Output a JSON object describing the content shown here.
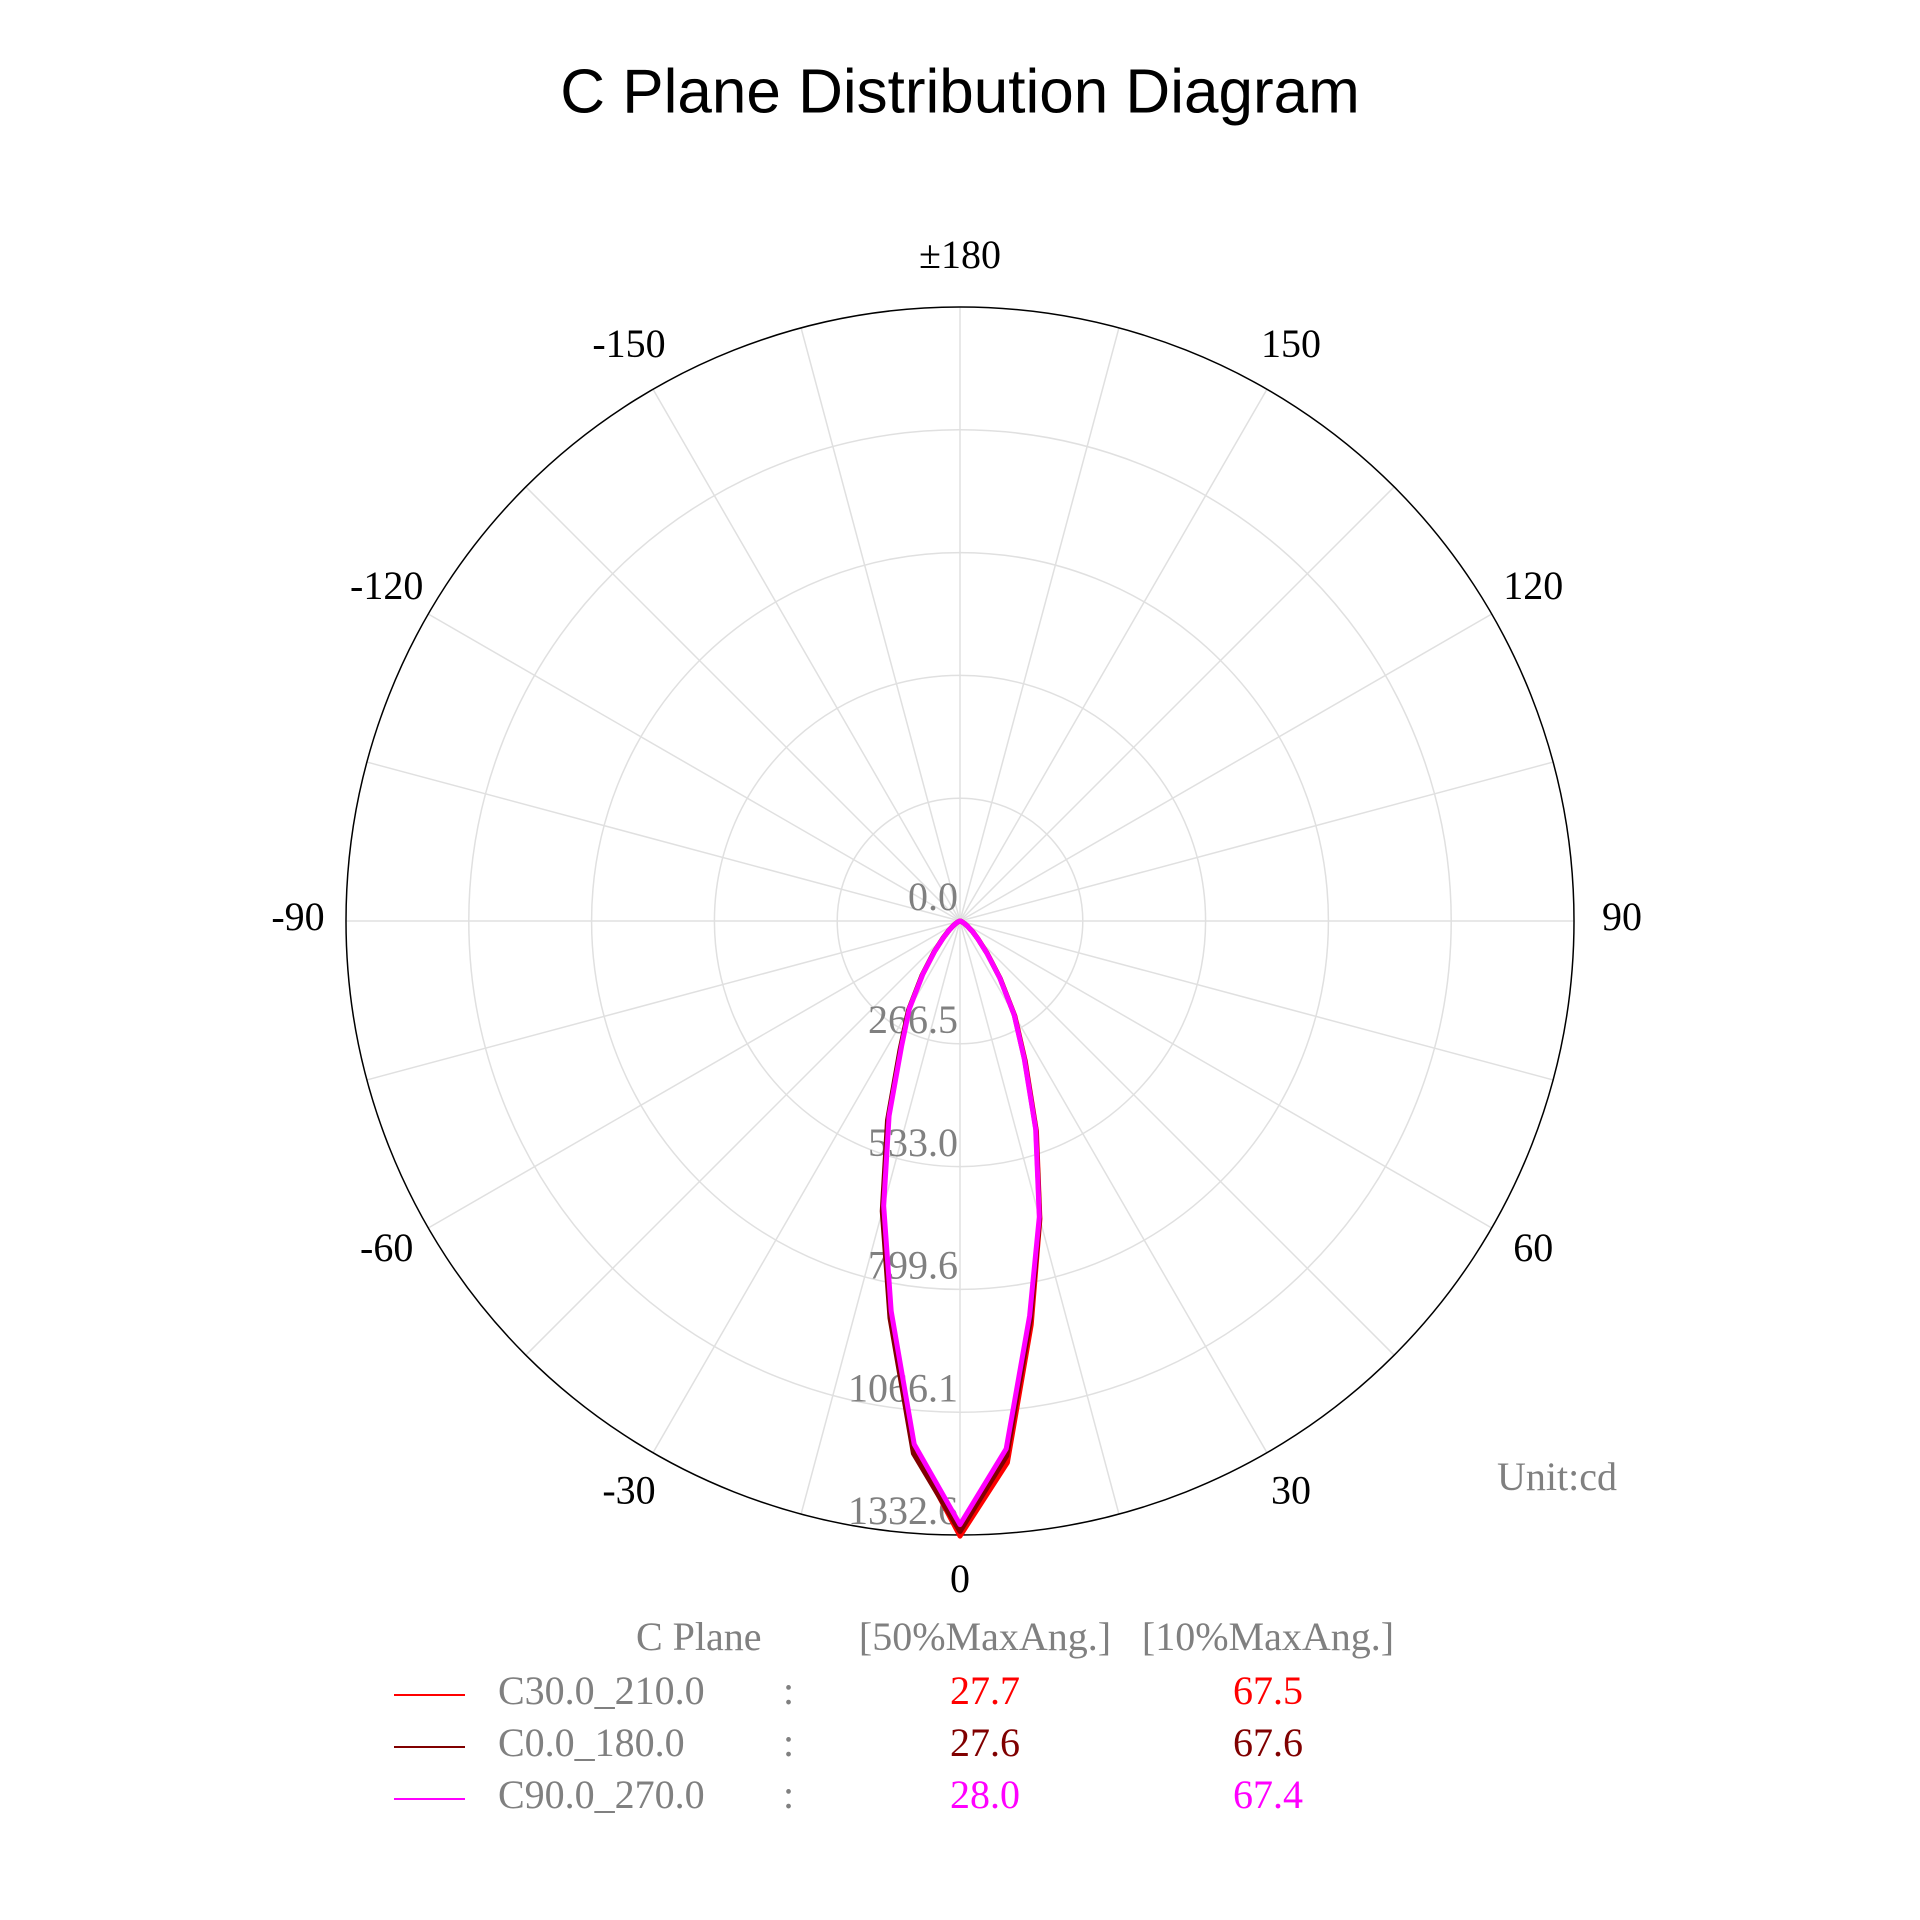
{
  "chart_data": {
    "type": "polar",
    "title": "C Plane Distribution Diagram",
    "unit_label": "Unit:cd",
    "x": [
      -90,
      -85,
      -80,
      -75,
      -70,
      -65,
      -60,
      -55,
      -50,
      -45,
      -40,
      -35,
      -30,
      -25,
      -20,
      -15,
      -10,
      -5,
      0,
      5,
      10,
      15,
      20,
      25,
      30,
      35,
      40,
      45,
      50,
      55,
      60,
      65,
      70,
      75,
      80,
      85,
      90
    ],
    "rlim": [
      0,
      1332.6
    ],
    "rticks": [
      {
        "value": 0,
        "label": "0.0"
      },
      266.5,
      {
        "value": 533,
        "label": "533.0"
      },
      799.6,
      1066.1,
      1332.6
    ],
    "angle_ticks": [
      {
        "value": 180,
        "label": "±180"
      },
      -150,
      -120,
      -90,
      -60,
      -30,
      0,
      30,
      60,
      90,
      120,
      150
    ],
    "grid": true,
    "table_headers": [
      "C Plane",
      "[50%MaxAng.]",
      "[10%MaxAng.]"
    ],
    "separator": ":",
    "series": [
      {
        "name": "C30.0_210.0",
        "color": "#ff0000",
        "values": [
          0,
          0,
          0,
          1,
          2,
          5,
          10,
          18,
          31,
          51,
          86,
          142,
          222,
          305,
          455,
          645,
          865,
          1150,
          1335,
          1180,
          890,
          670,
          485,
          335,
          238,
          152,
          92,
          56,
          36,
          21,
          12,
          6,
          3,
          1,
          0,
          0,
          0
        ],
        "stats": [
          {
            "value": 27.7,
            "label": "27.7"
          },
          {
            "value": 67.5,
            "label": "67.5"
          }
        ]
      },
      {
        "name": "C0.0_180.0",
        "color": "#800000",
        "values": [
          0,
          0,
          0,
          1,
          2,
          5,
          10,
          18,
          31,
          52,
          87,
          143,
          224,
          308,
          460,
          652,
          875,
          1160,
          1325,
          1165,
          880,
          668,
          482,
          332,
          236,
          151,
          91,
          55,
          35,
          20,
          12,
          6,
          3,
          1,
          0,
          0,
          0
        ],
        "stats": [
          {
            "value": 27.6,
            "label": "27.6"
          },
          {
            "value": 67.6,
            "label": "67.6"
          }
        ]
      },
      {
        "name": "C90.0_270.0",
        "color": "#ff00ff",
        "values": [
          0,
          0,
          0,
          1,
          2,
          5,
          10,
          18,
          30,
          50,
          85,
          140,
          220,
          300,
          450,
          640,
          860,
          1140,
          1310,
          1150,
          870,
          665,
          480,
          330,
          235,
          150,
          90,
          55,
          35,
          20,
          12,
          6,
          3,
          1,
          0,
          0,
          0
        ],
        "stats": [
          {
            "value": 28,
            "label": "28.0"
          },
          {
            "value": 67.4,
            "label": "67.4"
          }
        ]
      }
    ]
  }
}
